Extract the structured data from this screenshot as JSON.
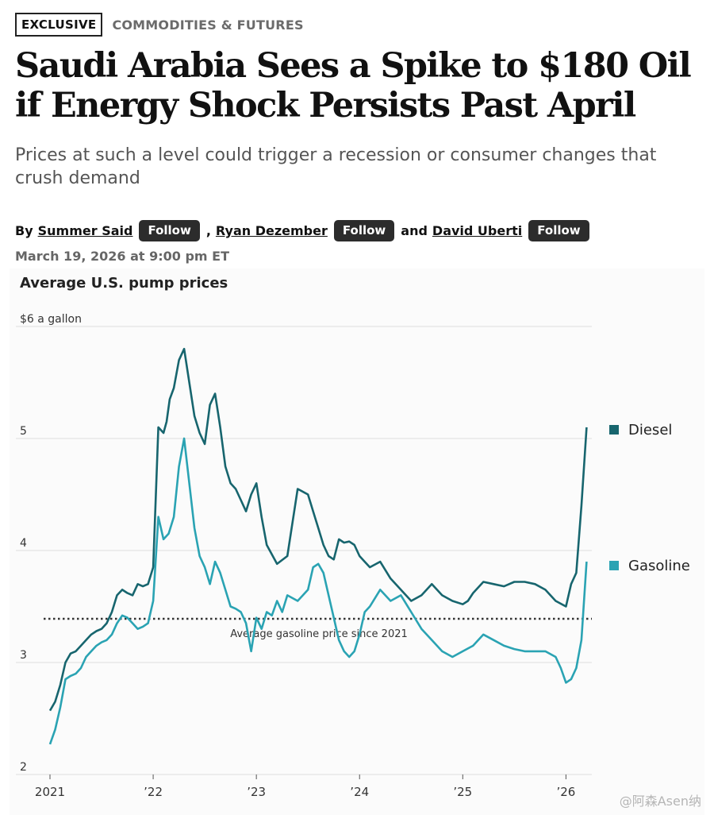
{
  "article": {
    "tag": "EXCLUSIVE",
    "section": "COMMODITIES & FUTURES",
    "headline": "Saudi Arabia Sees a Spike to $180 Oil if Energy Shock Persists Past April",
    "dek": "Prices at such a level could trigger a recession or consumer changes that crush demand",
    "byline": {
      "prefix": "By",
      "authors": [
        "Summer Said",
        "Ryan Dezember",
        "David Uberti"
      ],
      "separator": ",",
      "conjunction": "and",
      "follow_label": "Follow"
    },
    "date": "March 19, 2026 at 9:00 pm ET"
  },
  "watermark": "@阿森Asen纳",
  "colors": {
    "diesel": "#17656e",
    "gasoline": "#2aa3b3",
    "grid": "#dddddd",
    "avg": "#333333"
  },
  "chart_data": {
    "type": "line",
    "title": "Average U.S. pump prices",
    "y_unit_label": "$6 a gallon",
    "ylim": [
      2,
      6
    ],
    "yticks": [
      2,
      3,
      4,
      5,
      6
    ],
    "ytick_labels": [
      "2",
      "3",
      "4",
      "5",
      "$6 a gallon"
    ],
    "xlim": [
      2021.0,
      2026.22
    ],
    "xticks": [
      2021,
      2022,
      2023,
      2024,
      2025,
      2026
    ],
    "xtick_labels": [
      "2021",
      "’22",
      "’23",
      "’24",
      "’25",
      "’26"
    ],
    "legend": [
      "Diesel",
      "Gasoline"
    ],
    "annotations": [
      {
        "text": "Average gasoline price since 2021",
        "y": 3.39
      }
    ],
    "series": [
      {
        "name": "Diesel",
        "x": [
          2021.0,
          2021.05,
          2021.1,
          2021.15,
          2021.2,
          2021.25,
          2021.3,
          2021.35,
          2021.4,
          2021.45,
          2021.5,
          2021.55,
          2021.6,
          2021.65,
          2021.7,
          2021.75,
          2021.8,
          2021.85,
          2021.9,
          2021.95,
          2022.0,
          2022.05,
          2022.1,
          2022.13,
          2022.16,
          2022.2,
          2022.25,
          2022.3,
          2022.35,
          2022.4,
          2022.45,
          2022.5,
          2022.55,
          2022.6,
          2022.65,
          2022.7,
          2022.75,
          2022.8,
          2022.85,
          2022.9,
          2022.95,
          2023.0,
          2023.05,
          2023.1,
          2023.2,
          2023.3,
          2023.4,
          2023.5,
          2023.55,
          2023.6,
          2023.65,
          2023.7,
          2023.75,
          2023.8,
          2023.85,
          2023.9,
          2023.95,
          2024.0,
          2024.05,
          2024.1,
          2024.2,
          2024.3,
          2024.4,
          2024.5,
          2024.6,
          2024.7,
          2024.8,
          2024.9,
          2025.0,
          2025.05,
          2025.1,
          2025.2,
          2025.3,
          2025.4,
          2025.45,
          2025.5,
          2025.6,
          2025.7,
          2025.8,
          2025.9,
          2026.0,
          2026.05,
          2026.1,
          2026.15,
          2026.2
        ],
        "values": [
          2.57,
          2.65,
          2.8,
          3.0,
          3.08,
          3.1,
          3.15,
          3.2,
          3.25,
          3.28,
          3.3,
          3.35,
          3.45,
          3.6,
          3.65,
          3.62,
          3.6,
          3.7,
          3.68,
          3.7,
          3.85,
          5.1,
          5.05,
          5.15,
          5.35,
          5.45,
          5.7,
          5.8,
          5.5,
          5.2,
          5.05,
          4.95,
          5.3,
          5.4,
          5.1,
          4.75,
          4.6,
          4.55,
          4.45,
          4.35,
          4.5,
          4.6,
          4.3,
          4.05,
          3.88,
          3.95,
          4.55,
          4.5,
          4.35,
          4.2,
          4.05,
          3.95,
          3.92,
          4.1,
          4.07,
          4.08,
          4.05,
          3.95,
          3.9,
          3.85,
          3.9,
          3.75,
          3.65,
          3.55,
          3.6,
          3.7,
          3.6,
          3.55,
          3.52,
          3.55,
          3.62,
          3.72,
          3.7,
          3.68,
          3.7,
          3.72,
          3.72,
          3.7,
          3.65,
          3.55,
          3.5,
          3.7,
          3.8,
          4.4,
          5.1
        ]
      },
      {
        "name": "Gasoline",
        "x": [
          2021.0,
          2021.05,
          2021.1,
          2021.15,
          2021.2,
          2021.25,
          2021.3,
          2021.35,
          2021.4,
          2021.45,
          2021.5,
          2021.55,
          2021.6,
          2021.65,
          2021.7,
          2021.75,
          2021.8,
          2021.85,
          2021.9,
          2021.95,
          2022.0,
          2022.05,
          2022.1,
          2022.15,
          2022.2,
          2022.25,
          2022.3,
          2022.35,
          2022.4,
          2022.45,
          2022.5,
          2022.55,
          2022.6,
          2022.65,
          2022.7,
          2022.75,
          2022.8,
          2022.85,
          2022.9,
          2022.95,
          2023.0,
          2023.05,
          2023.1,
          2023.15,
          2023.2,
          2023.25,
          2023.3,
          2023.4,
          2023.5,
          2023.55,
          2023.6,
          2023.65,
          2023.7,
          2023.75,
          2023.8,
          2023.85,
          2023.9,
          2023.95,
          2024.0,
          2024.05,
          2024.1,
          2024.2,
          2024.3,
          2024.4,
          2024.5,
          2024.6,
          2024.7,
          2024.8,
          2024.9,
          2025.0,
          2025.1,
          2025.2,
          2025.3,
          2025.4,
          2025.5,
          2025.6,
          2025.7,
          2025.8,
          2025.9,
          2025.95,
          2026.0,
          2026.05,
          2026.1,
          2026.15,
          2026.2
        ],
        "values": [
          2.27,
          2.4,
          2.6,
          2.85,
          2.88,
          2.9,
          2.95,
          3.05,
          3.1,
          3.15,
          3.18,
          3.2,
          3.25,
          3.35,
          3.42,
          3.4,
          3.35,
          3.3,
          3.32,
          3.35,
          3.55,
          4.3,
          4.1,
          4.15,
          4.3,
          4.75,
          5.0,
          4.6,
          4.2,
          3.95,
          3.85,
          3.7,
          3.9,
          3.8,
          3.65,
          3.5,
          3.48,
          3.45,
          3.35,
          3.1,
          3.4,
          3.3,
          3.45,
          3.42,
          3.55,
          3.45,
          3.6,
          3.55,
          3.65,
          3.85,
          3.88,
          3.8,
          3.6,
          3.4,
          3.2,
          3.1,
          3.05,
          3.1,
          3.25,
          3.45,
          3.5,
          3.65,
          3.55,
          3.6,
          3.45,
          3.3,
          3.2,
          3.1,
          3.05,
          3.1,
          3.15,
          3.25,
          3.2,
          3.15,
          3.12,
          3.1,
          3.1,
          3.1,
          3.05,
          2.95,
          2.82,
          2.85,
          2.95,
          3.2,
          3.9
        ]
      }
    ]
  }
}
